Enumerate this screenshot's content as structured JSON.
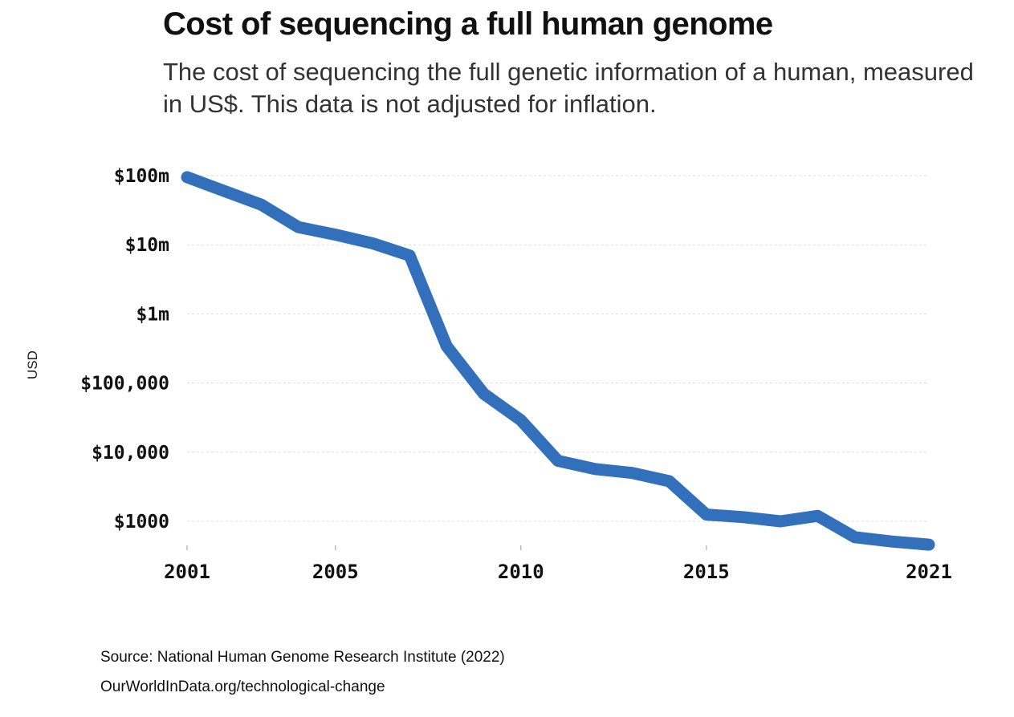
{
  "header": {
    "title": "Cost of sequencing a full human genome",
    "subtitle": "The cost of sequencing the full genetic information of a human, measured in US$. This data is not adjusted for inflation."
  },
  "footer": {
    "source": "Source: National Human Genome Research Institute (2022)",
    "url": "OurWorldInData.org/technological-change"
  },
  "chart_data": {
    "type": "line",
    "title": "Cost of sequencing a full human genome",
    "subtitle": "The cost of sequencing the full genetic information of a human, measured in US$. This data is not adjusted for inflation.",
    "xlabel": "",
    "ylabel": "USD",
    "yscale": "log",
    "grid": "horizontal dashed",
    "legend": "none",
    "x_ticks": [
      2001,
      2005,
      2010,
      2015,
      2021
    ],
    "y_ticks": [
      {
        "value": 100000000,
        "label": "$100m"
      },
      {
        "value": 10000000,
        "label": "$10m"
      },
      {
        "value": 1000000,
        "label": "$1m"
      },
      {
        "value": 100000,
        "label": "$100,000"
      },
      {
        "value": 10000,
        "label": "$10,000"
      },
      {
        "value": 1000,
        "label": "$1000"
      }
    ],
    "xlim": [
      2001,
      2021
    ],
    "ylim": [
      450,
      100000000
    ],
    "series": [
      {
        "color": "#3370bb",
        "points": [
          [
            2001,
            95000000
          ],
          [
            2002,
            60000000
          ],
          [
            2003,
            38000000
          ],
          [
            2004,
            18000000
          ],
          [
            2005,
            14000000
          ],
          [
            2006,
            10500000
          ],
          [
            2007,
            7000000
          ],
          [
            2008,
            340000
          ],
          [
            2009,
            70000
          ],
          [
            2010,
            29000
          ],
          [
            2011,
            7500
          ],
          [
            2012,
            5700
          ],
          [
            2013,
            5000
          ],
          [
            2014,
            3800
          ],
          [
            2015,
            1250
          ],
          [
            2016,
            1150
          ],
          [
            2017,
            1000
          ],
          [
            2018,
            1200
          ],
          [
            2019,
            590
          ],
          [
            2020,
            510
          ],
          [
            2021,
            460
          ]
        ]
      }
    ]
  }
}
